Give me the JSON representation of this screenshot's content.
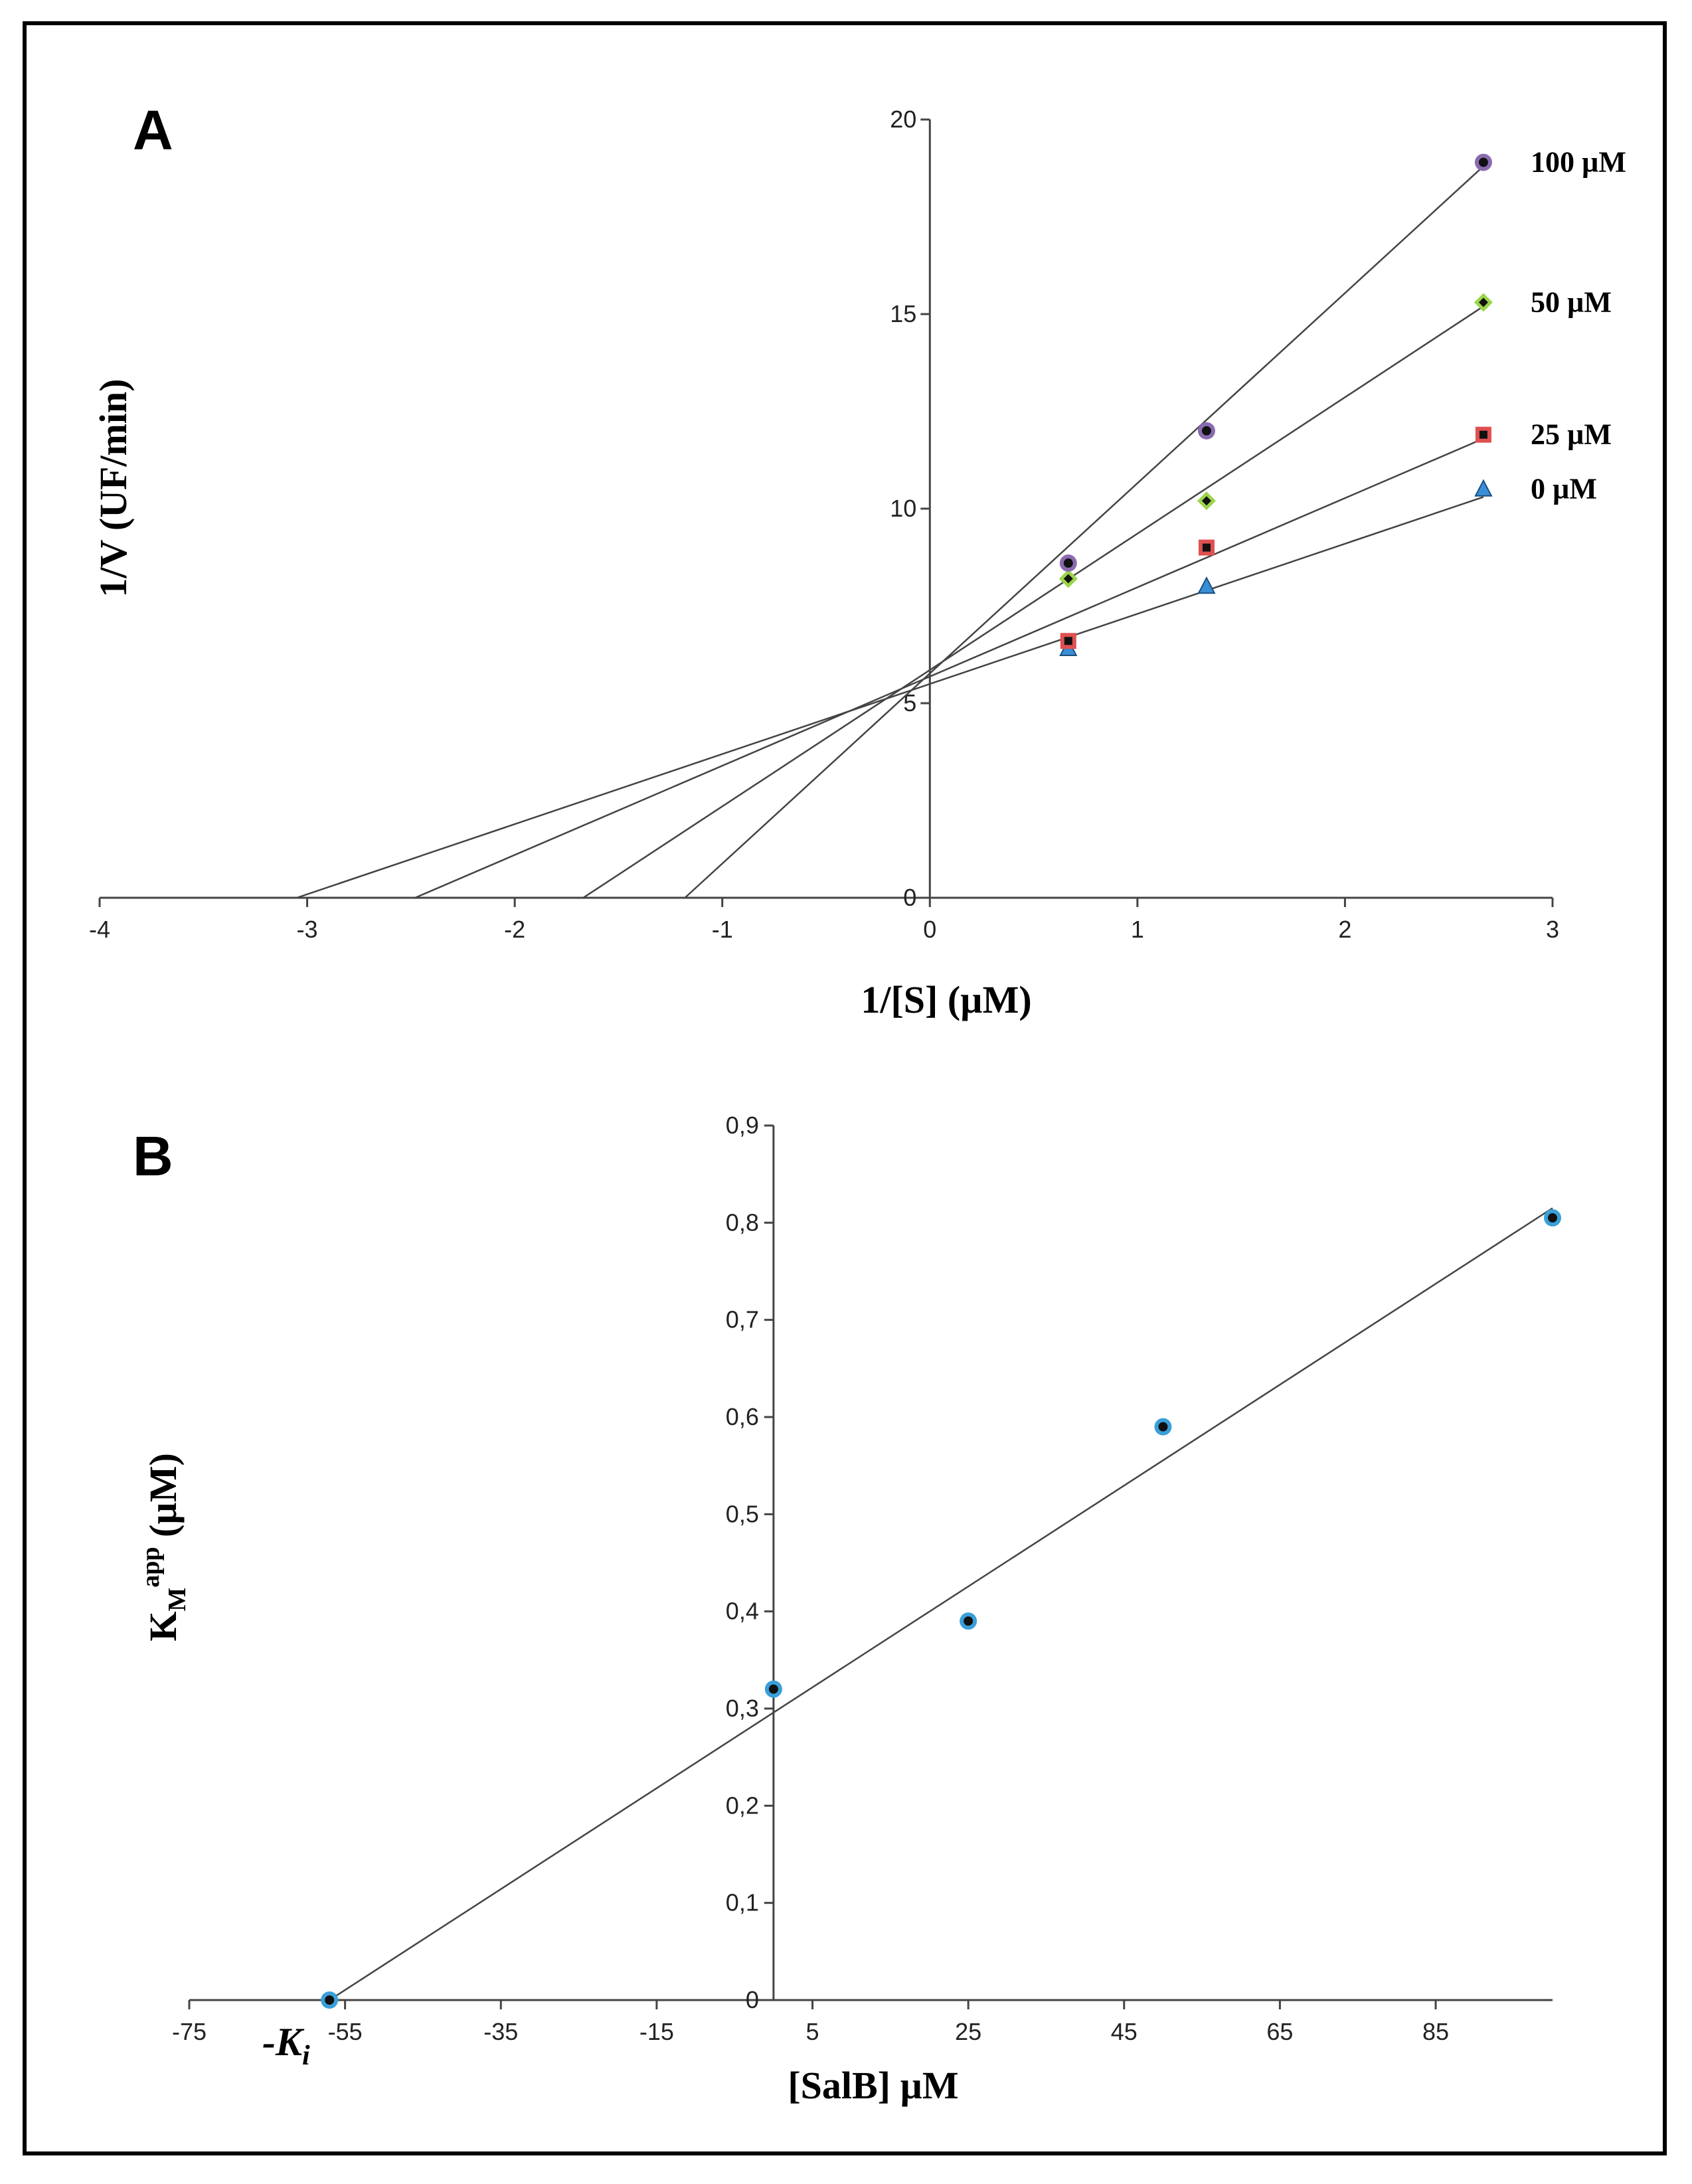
{
  "chart_data": [
    {
      "type": "scatter",
      "panel_label": "A",
      "xlabel": "1/[S] (µM)",
      "ylabel": "1/V (UF/min)",
      "xlim": [
        -4,
        3
      ],
      "ylim": [
        0,
        20
      ],
      "xticks": [
        -4,
        -3,
        -2,
        -1,
        0,
        1,
        2,
        3
      ],
      "yticks": [
        0,
        5,
        10,
        15,
        20
      ],
      "grid": false,
      "series": [
        {
          "name": "0 µM",
          "marker": "triangle",
          "color": "#3a8ed6",
          "x": [
            0.667,
            1.333,
            2.667
          ],
          "y": [
            6.4,
            8.0,
            10.5
          ],
          "fit": {
            "x": [
              -3.05,
              2.667
            ],
            "y": [
              0,
              10.3
            ]
          }
        },
        {
          "name": "25 µM",
          "marker": "square",
          "color": "#e05050",
          "x": [
            0.667,
            1.333,
            2.667
          ],
          "y": [
            6.6,
            9.0,
            11.9
          ],
          "fit": {
            "x": [
              -2.48,
              2.667
            ],
            "y": [
              0,
              11.8
            ]
          }
        },
        {
          "name": "50 µM",
          "marker": "diamond",
          "color": "#9bd44a",
          "x": [
            0.667,
            1.333,
            2.667
          ],
          "y": [
            8.2,
            10.2,
            15.3
          ],
          "fit": {
            "x": [
              -1.67,
              2.667
            ],
            "y": [
              0,
              15.2
            ]
          }
        },
        {
          "name": "100 µM",
          "marker": "circle",
          "color": "#8a6bb0",
          "x": [
            0.667,
            1.333,
            2.667
          ],
          "y": [
            8.6,
            12.0,
            18.9
          ],
          "fit": {
            "x": [
              -1.18,
              2.667
            ],
            "y": [
              0,
              18.8
            ]
          }
        }
      ]
    },
    {
      "type": "scatter",
      "panel_label": "B",
      "xlabel": "[SalB] µM",
      "ylabel_main": "K",
      "ylabel_sub": "M",
      "ylabel_sup": "app",
      "ylabel_unit": " (µM)",
      "ki_label": "-K",
      "ki_sub": "i",
      "xlim": [
        -75,
        100
      ],
      "ylim": [
        0,
        0.9
      ],
      "xticks": [
        "-75",
        "-55",
        "-35",
        "-15",
        "5",
        "25",
        "45",
        "65",
        "85"
      ],
      "yticks": [
        "0",
        "0,1",
        "0,2",
        "0,3",
        "0,4",
        "0,5",
        "0,6",
        "0,7",
        "0,8",
        "0,9"
      ],
      "grid": false,
      "series": [
        {
          "name": "KM app",
          "marker": "circle",
          "color": "#3a9fd8",
          "x": [
            -57,
            0,
            25,
            50,
            100
          ],
          "y": [
            0.0,
            0.32,
            0.39,
            0.59,
            0.805
          ],
          "fit": {
            "x": [
              -57,
              100
            ],
            "y": [
              0.0,
              0.815
            ]
          }
        }
      ]
    }
  ]
}
